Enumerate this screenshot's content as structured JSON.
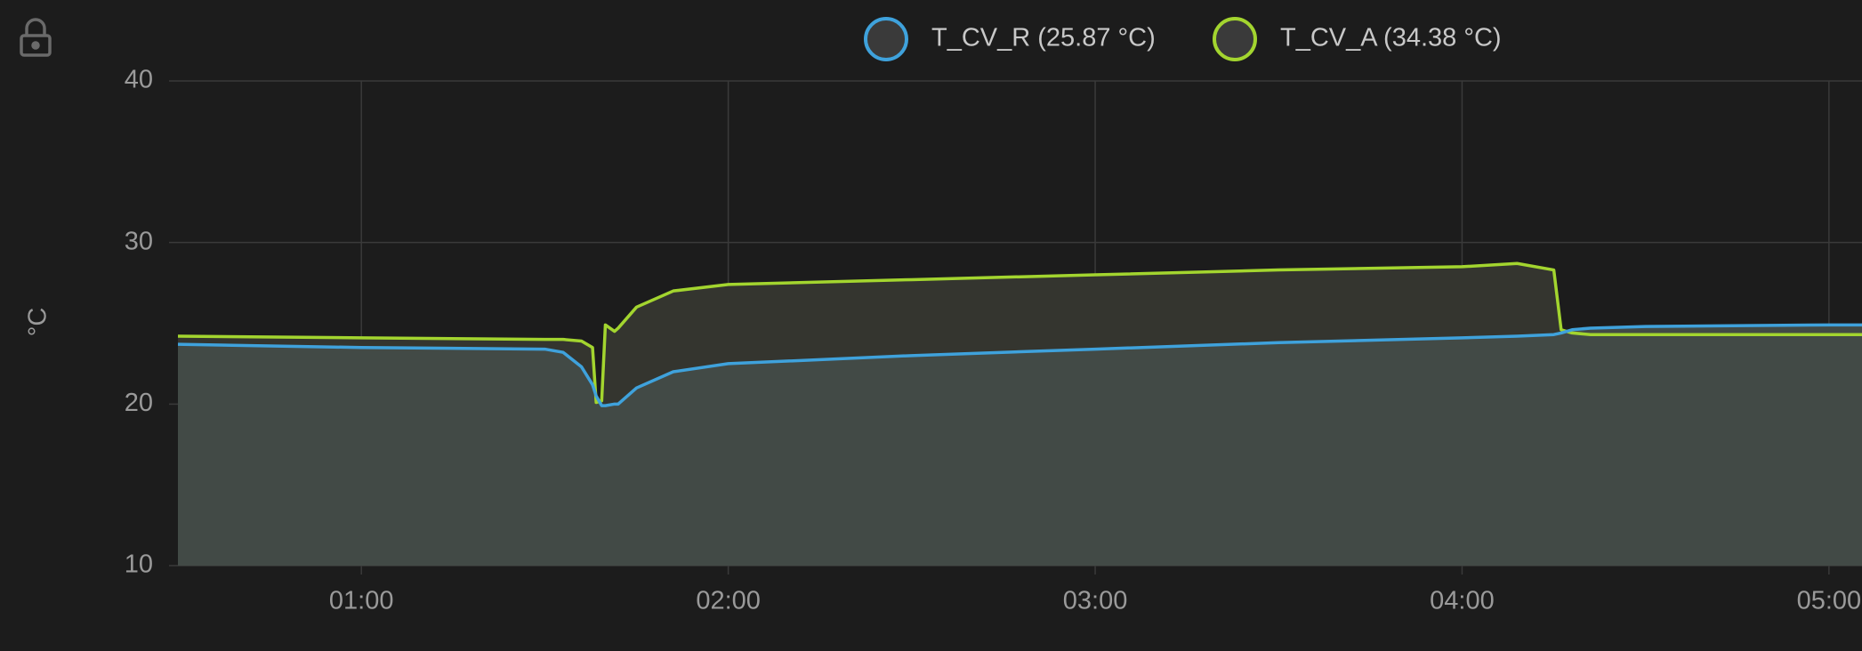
{
  "chart_data": {
    "type": "line",
    "y_label": "°C",
    "x": [
      0.5,
      1.0,
      1.5,
      1.55,
      1.6,
      1.63,
      1.64,
      1.655,
      1.665,
      1.69,
      1.7,
      1.75,
      1.85,
      2.0,
      2.5,
      3.0,
      3.5,
      4.0,
      4.15,
      4.25,
      4.27,
      4.3,
      4.35,
      4.5,
      5.0,
      5.09
    ],
    "series": [
      {
        "name": "T_CV_R (25.87 °C)",
        "color": "#3fa2dc",
        "fill": "#424a46",
        "values": [
          23.7,
          23.5,
          23.4,
          23.2,
          22.3,
          21.2,
          20.5,
          19.9,
          19.9,
          20.0,
          20.0,
          21.0,
          22.0,
          22.5,
          23.0,
          23.4,
          23.8,
          24.1,
          24.2,
          24.3,
          24.4,
          24.6,
          24.7,
          24.8,
          24.9,
          24.9
        ]
      },
      {
        "name": "T_CV_A (34.38 °C)",
        "color": "#a3d52f",
        "fill": "#34352f",
        "values": [
          24.2,
          24.1,
          24.0,
          24.0,
          23.9,
          23.5,
          20.1,
          20.2,
          24.9,
          24.5,
          24.7,
          26.0,
          27.0,
          27.4,
          27.7,
          28.0,
          28.3,
          28.5,
          28.7,
          28.3,
          24.6,
          24.4,
          24.3,
          24.3,
          24.3,
          24.3
        ]
      }
    ],
    "xlim": [
      0.5,
      5.09
    ],
    "xticks": [
      {
        "value": 1,
        "label": "01:00"
      },
      {
        "value": 2,
        "label": "02:00"
      },
      {
        "value": 3,
        "label": "03:00"
      },
      {
        "value": 4,
        "label": "04:00"
      },
      {
        "value": 5,
        "label": "05:00"
      }
    ],
    "ylim": [
      10,
      40
    ],
    "yticks": [
      10,
      20,
      30,
      40
    ],
    "grid": true
  }
}
